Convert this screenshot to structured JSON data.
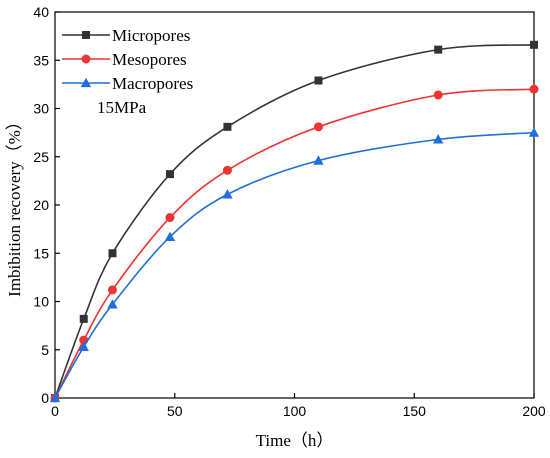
{
  "chart_data": {
    "type": "line",
    "xlabel": "Time（h）",
    "ylabel": "Imbibition recovery（%）",
    "xlim": [
      0,
      200
    ],
    "ylim": [
      0,
      40
    ],
    "xticks": [
      0,
      50,
      100,
      150,
      200
    ],
    "yticks": [
      0,
      5,
      10,
      15,
      20,
      25,
      30,
      35,
      40
    ],
    "legend_position": "top-left",
    "grid": false,
    "annotation": "15MPa",
    "series": [
      {
        "name": "Micropores",
        "color": "#333333",
        "marker": "square",
        "x": [
          0,
          12,
          24,
          48,
          72,
          110,
          160,
          200
        ],
        "y": [
          0,
          8.2,
          15.0,
          23.2,
          28.1,
          32.9,
          36.1,
          36.6
        ]
      },
      {
        "name": "Mesopores",
        "color": "#ee3333",
        "marker": "circle",
        "x": [
          0,
          12,
          24,
          48,
          72,
          110,
          160,
          200
        ],
        "y": [
          0,
          6.0,
          11.2,
          18.7,
          23.6,
          28.1,
          31.4,
          32.0
        ]
      },
      {
        "name": "Macropores",
        "color": "#1e6fd9",
        "marker": "triangle",
        "x": [
          0,
          12,
          24,
          48,
          72,
          110,
          160,
          200
        ],
        "y": [
          0,
          5.3,
          9.7,
          16.7,
          21.1,
          24.6,
          26.8,
          27.5
        ]
      }
    ]
  }
}
